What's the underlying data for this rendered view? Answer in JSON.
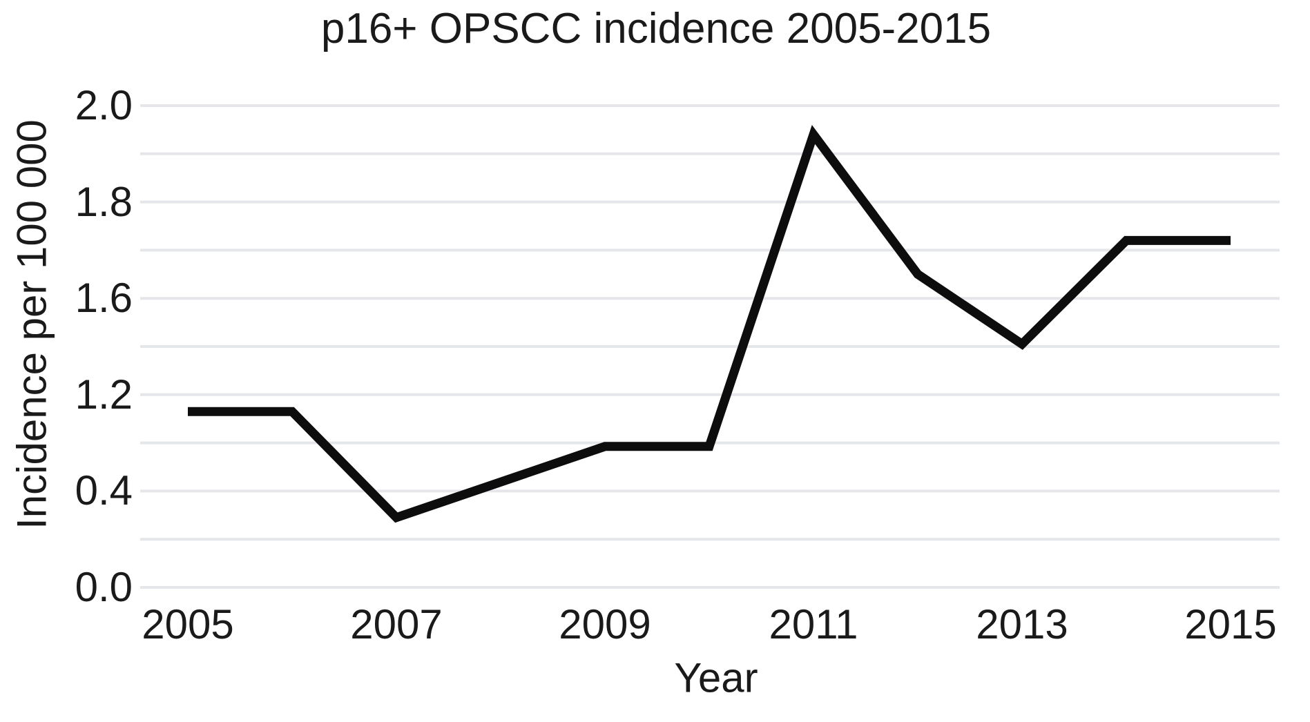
{
  "title": "p16+ OPSCC incidence 2005-2015",
  "colors": {
    "background": "#ffffff",
    "text": "#1a1a1a",
    "line": "#0d0d0d",
    "grid": "#e4e6e9"
  },
  "chart_data": {
    "type": "line",
    "title": "p16+ OPSCC incidence 2005-2015",
    "xlabel": "Year",
    "ylabel": "Incidence per 100 000",
    "x": [
      2005,
      2006,
      2007,
      2009,
      2010,
      2011,
      2012,
      2013,
      2014,
      2015
    ],
    "values": [
      1.06,
      1.06,
      0.29,
      0.77,
      0.77,
      1.94,
      1.65,
      1.41,
      1.72,
      1.72
    ],
    "series_name": "p16+ OPSCC incidence per 100 000",
    "x_tick_labels": [
      "2005",
      "2007",
      "2009",
      "2011",
      "2013",
      "2015"
    ],
    "y_tick_labels": [
      "0.0",
      "0.4",
      "1.2",
      "1.6",
      "1.8",
      "2.0"
    ],
    "y_axis_note": "Six labeled ticks are evenly spaced on the axis although their values (0.0, 0.4, 1.2, 1.6, 1.8, 2.0) are not uniform; unlabeled gridlines sit midway between labeled ones (11 horizontal gridlines total).",
    "x_range": [
      2005,
      2015
    ],
    "grid": "horizontal-only",
    "legend": "none",
    "markers": "none",
    "line_style": "solid thick black"
  }
}
